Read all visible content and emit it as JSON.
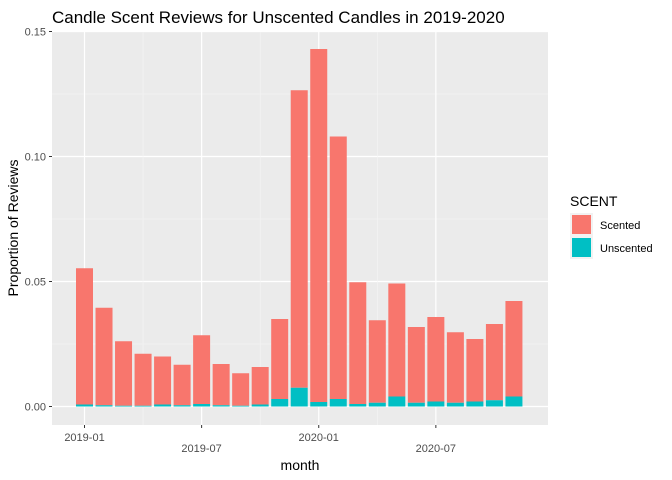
{
  "chart_data": {
    "type": "bar",
    "stacked": true,
    "title": "Candle Scent Reviews for Unscented Candles in 2019-2020",
    "xlabel": "month",
    "ylabel": "Proportion of Reviews",
    "ylim": [
      0,
      0.15
    ],
    "y_ticks": [
      0.0,
      0.05,
      0.1,
      0.15
    ],
    "y_tick_labels": [
      "0.00",
      "0.05",
      "0.10",
      "0.15"
    ],
    "x_ticks": [
      {
        "date": "2019-01",
        "label": "2019-01",
        "pos": "below"
      },
      {
        "date": "2019-07",
        "label": "2019-07",
        "pos": "lower"
      },
      {
        "date": "2020-01",
        "label": "2020-01",
        "pos": "below"
      },
      {
        "date": "2020-07",
        "label": "2020-07",
        "pos": "lower"
      }
    ],
    "categories": [
      "2019-01",
      "2019-02",
      "2019-03",
      "2019-04",
      "2019-05",
      "2019-06",
      "2019-07",
      "2019-08",
      "2019-09",
      "2019-10",
      "2019-11",
      "2019-12",
      "2020-01",
      "2020-02",
      "2020-03",
      "2020-04",
      "2020-05",
      "2020-06",
      "2020-07",
      "2020-08",
      "2020-09",
      "2020-10",
      "2020-11"
    ],
    "series": [
      {
        "name": "Scented",
        "color": "#F8766D",
        "values": [
          0.0545,
          0.039,
          0.0258,
          0.0208,
          0.0192,
          0.0162,
          0.0275,
          0.0165,
          0.013,
          0.015,
          0.032,
          0.119,
          0.1412,
          0.105,
          0.0487,
          0.033,
          0.0452,
          0.0303,
          0.0338,
          0.0282,
          0.025,
          0.0305,
          0.0382
        ]
      },
      {
        "name": "Unscented",
        "color": "#00BFC4",
        "values": [
          0.0008,
          0.0005,
          0.0003,
          0.0003,
          0.0008,
          0.0005,
          0.001,
          0.0005,
          0.0003,
          0.0008,
          0.003,
          0.0075,
          0.0018,
          0.003,
          0.001,
          0.0015,
          0.004,
          0.0015,
          0.002,
          0.0015,
          0.002,
          0.0025,
          0.004
        ]
      }
    ],
    "legend": {
      "title": "SCENT",
      "placement": "right"
    },
    "grid": true,
    "background": "#EBEBEB"
  }
}
